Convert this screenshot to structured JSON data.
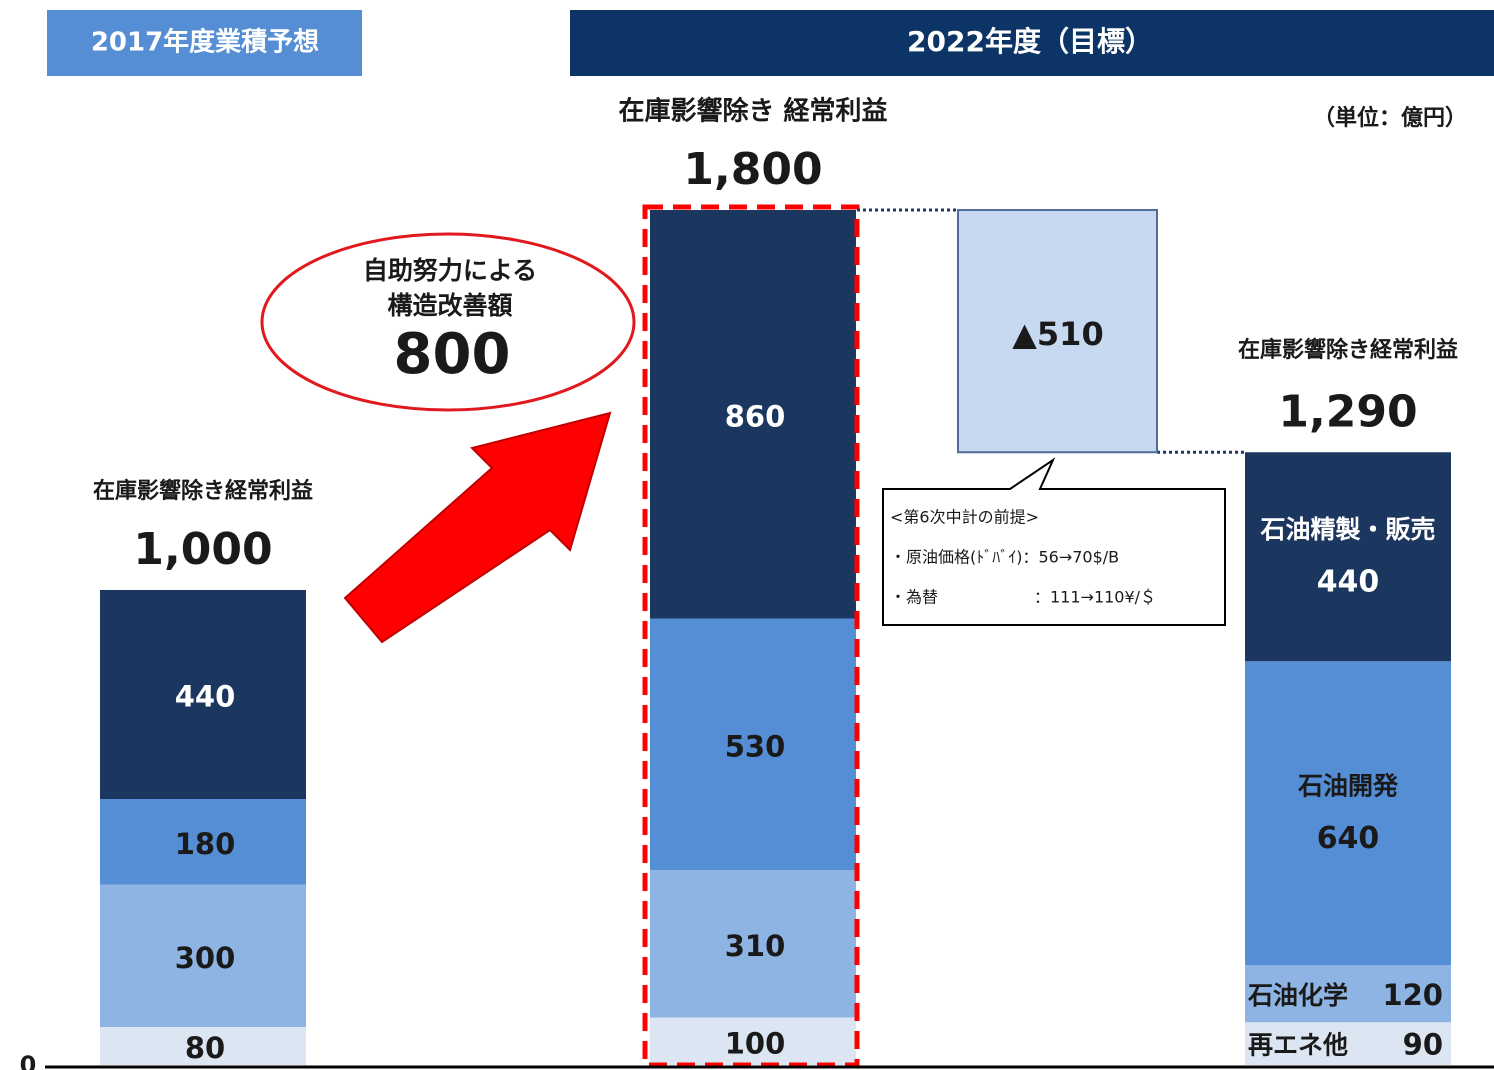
{
  "headers": [
    "2017年度業積予想",
    "2022年度（目標）"
  ],
  "unit": "（単位：億円）",
  "chart_data": {
    "type": "stacked-bar",
    "ylim": [
      0,
      2200
    ],
    "yticks": [
      0
    ],
    "colors": [
      "#dce6f2",
      "#8eb4e3",
      "#558ed5",
      "#1c375f"
    ],
    "bars": [
      {
        "label": "在庫影響除き経常利益",
        "total": {
          "value": 1000,
          "label": "1,000"
        },
        "values": [
          80,
          300,
          180,
          440
        ]
      },
      {
        "label": "在庫影響除き 経常利益",
        "total": {
          "value": 1800,
          "label": "1,800"
        },
        "values": [
          100,
          310,
          530,
          860
        ]
      },
      {
        "label": "在庫影響除き経常利益",
        "total": {
          "value": 1290,
          "label": "1,290"
        },
        "values": [
          90,
          120,
          640,
          440
        ],
        "segment_names": [
          "再エネ他",
          "石油化学",
          "石油開発",
          "石油精製・販売"
        ]
      }
    ],
    "gap": {
      "value": -510,
      "label": "▲510"
    },
    "callout": {
      "lines": [
        "自助努力による",
        "構造改善額"
      ],
      "value": 800
    },
    "note": [
      "<第6次中計の前提>",
      "・原油価格(ﾄﾞﾊﾞｲ)：56→70$/B",
      "・為替　　　　　　：111→110¥/＄"
    ]
  }
}
